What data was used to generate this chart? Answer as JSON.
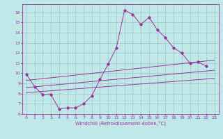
{
  "xlabel": "Windchill (Refroidissement éolien,°C)",
  "xlim": [
    -0.5,
    23.5
  ],
  "ylim": [
    6,
    16.8
  ],
  "yticks": [
    6,
    7,
    8,
    9,
    10,
    11,
    12,
    13,
    14,
    15,
    16
  ],
  "xticks": [
    0,
    1,
    2,
    3,
    4,
    5,
    6,
    7,
    8,
    9,
    10,
    11,
    12,
    13,
    14,
    15,
    16,
    17,
    18,
    19,
    20,
    21,
    22,
    23
  ],
  "bg_color": "#c0e8e8",
  "grid_color": "#a0cccc",
  "line_color": "#993399",
  "main_data_x": [
    0,
    1,
    2,
    3,
    4,
    5,
    6,
    7,
    8,
    9,
    10,
    11,
    12,
    13,
    14,
    15,
    16,
    17,
    18,
    19,
    20,
    21,
    22
  ],
  "main_data_y": [
    9.9,
    8.7,
    7.9,
    7.9,
    6.5,
    6.6,
    6.6,
    7.0,
    7.8,
    9.4,
    10.9,
    12.5,
    16.2,
    15.8,
    14.8,
    15.5,
    14.3,
    13.5,
    12.5,
    12.0,
    11.0,
    11.1,
    10.7
  ],
  "trend1_x": [
    0,
    23
  ],
  "trend1_y": [
    8.1,
    9.5
  ],
  "trend2_x": [
    0,
    23
  ],
  "trend2_y": [
    8.6,
    10.3
  ],
  "trend3_x": [
    0,
    23
  ],
  "trend3_y": [
    9.3,
    11.3
  ]
}
